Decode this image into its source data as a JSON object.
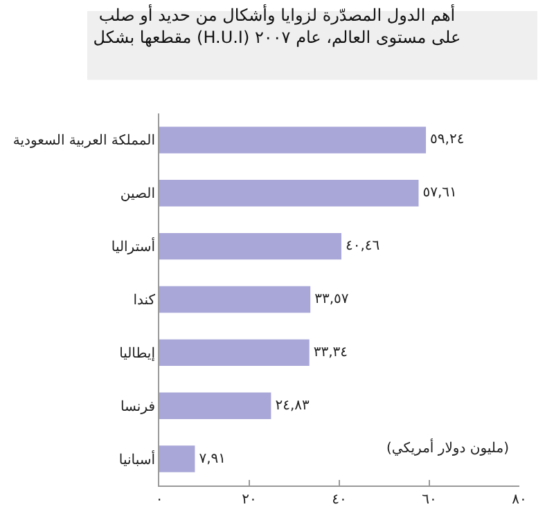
{
  "chart_data": {
    "type": "bar",
    "orientation": "horizontal",
    "title": "أهم الدول المصدّرة لزوايا وأشكال من حديد أو صلب\nمقطعها بشكل (H.U.I) على مستوى العالم، عام ٢٠٠٧",
    "categories": [
      "المملكة العربية السعودية",
      "الصين",
      "أستراليا",
      "كندا",
      "إيطاليا",
      "فرنسا",
      "أسبانيا"
    ],
    "values": [
      59.24,
      57.61,
      40.46,
      33.57,
      33.34,
      24.83,
      7.91
    ],
    "value_labels": [
      "٥٩,٢٤",
      "٥٧,٦١",
      "٤٠,٤٦",
      "٣٣,٥٧",
      "٣٣,٣٤",
      "٢٤,٨٣",
      "٧,٩١"
    ],
    "color": "#a9a7d8",
    "xlim": [
      0,
      80
    ],
    "xticks": [
      {
        "value": 0,
        "label": "٠"
      },
      {
        "value": 20,
        "label": "٢٠"
      },
      {
        "value": 40,
        "label": "٤٠"
      },
      {
        "value": 60,
        "label": "٦٠"
      },
      {
        "value": 80,
        "label": "٨٠"
      }
    ],
    "annotations": [
      {
        "text": "(مليون دولار أمريكي)"
      }
    ],
    "grid": false,
    "legend": false
  }
}
